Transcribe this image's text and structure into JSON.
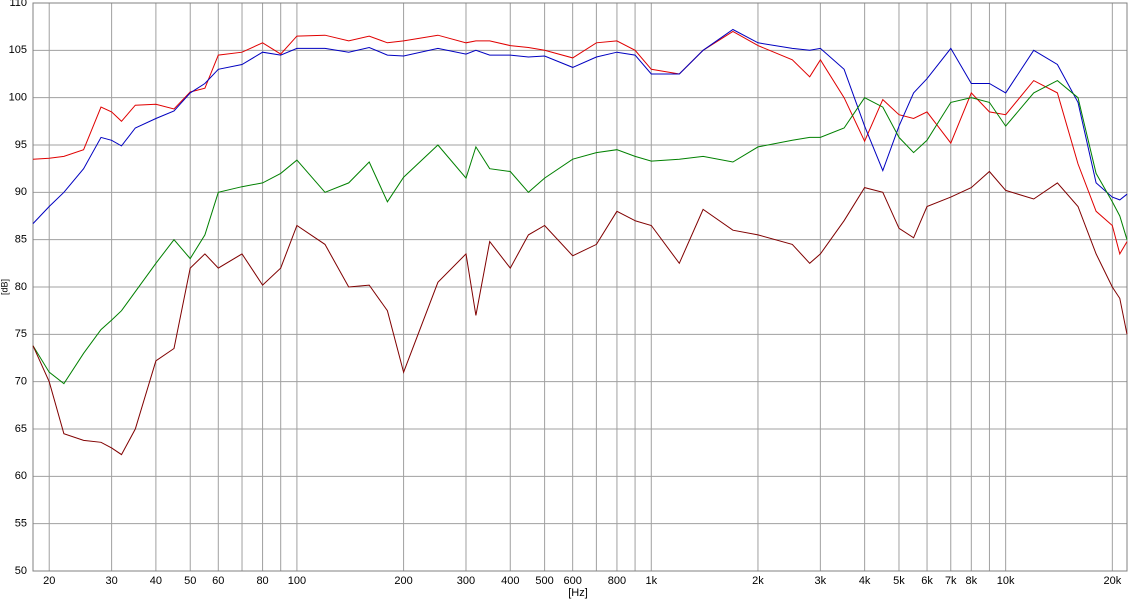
{
  "chart_data": {
    "type": "line",
    "xlabel": "[Hz]",
    "ylabel": "[dB]",
    "xscale": "log",
    "grid": true,
    "xlim": [
      18,
      22000
    ],
    "ylim": [
      50,
      110
    ],
    "yticks": [
      50,
      55,
      60,
      65,
      70,
      75,
      80,
      85,
      90,
      95,
      100,
      105,
      110
    ],
    "xticks": [
      20,
      30,
      40,
      50,
      60,
      80,
      100,
      200,
      300,
      400,
      500,
      600,
      800,
      {
        "value": 1000,
        "label": "1k"
      },
      {
        "value": 2000,
        "label": "2k"
      },
      {
        "value": 3000,
        "label": "3k"
      },
      {
        "value": 4000,
        "label": "4k"
      },
      {
        "value": 5000,
        "label": "5k"
      },
      {
        "value": 6000,
        "label": "6k"
      },
      {
        "value": 7000,
        "label": "7k"
      },
      {
        "value": 8000,
        "label": "8k"
      },
      {
        "value": 10000,
        "label": "10k"
      },
      {
        "value": 20000,
        "label": "20k"
      }
    ],
    "xminorticks": [
      70,
      90,
      700,
      900,
      9000
    ],
    "x": [
      18,
      20,
      22,
      25,
      28,
      30,
      32,
      35,
      40,
      45,
      50,
      55,
      60,
      70,
      80,
      90,
      100,
      120,
      140,
      160,
      180,
      200,
      250,
      300,
      320,
      350,
      400,
      450,
      500,
      600,
      700,
      800,
      900,
      1000,
      1200,
      1400,
      1700,
      2000,
      2500,
      2800,
      3000,
      3500,
      4000,
      4500,
      5000,
      5500,
      6000,
      7000,
      8000,
      9000,
      10000,
      12000,
      14000,
      16000,
      18000,
      20000,
      21000,
      22000
    ],
    "series": [
      {
        "color": "#e00000",
        "values": [
          93.5,
          93.6,
          93.8,
          94.5,
          99,
          98.5,
          97.5,
          99.2,
          99.3,
          98.8,
          100.6,
          101,
          104.5,
          104.8,
          105.8,
          104.6,
          106.5,
          106.6,
          106,
          106.5,
          105.8,
          106,
          106.6,
          105.8,
          106,
          106,
          105.5,
          105.3,
          105,
          104.2,
          105.8,
          106,
          105,
          103,
          102.5,
          105,
          107,
          105.5,
          104,
          102.2,
          104,
          100,
          95.4,
          99.8,
          98.2,
          97.8,
          98.5,
          95.2,
          100.5,
          98.5,
          98.2,
          101.8,
          100.5,
          93,
          88,
          86.5,
          83.5,
          84.8
        ]
      },
      {
        "color": "#0000c0",
        "values": [
          86.7,
          88.5,
          90,
          92.5,
          95.8,
          95.5,
          94.9,
          96.8,
          97.8,
          98.6,
          100.5,
          101.5,
          103,
          103.5,
          104.8,
          104.5,
          105.2,
          105.2,
          104.8,
          105.3,
          104.5,
          104.4,
          105.2,
          104.6,
          105,
          104.5,
          104.5,
          104.3,
          104.4,
          103.2,
          104.3,
          104.8,
          104.5,
          102.5,
          102.5,
          105,
          107.2,
          105.8,
          105.2,
          105,
          105.2,
          103,
          97,
          92.3,
          97,
          100.5,
          102,
          105.2,
          101.5,
          101.5,
          100.5,
          105,
          103.5,
          99.5,
          91,
          89.5,
          89.2,
          89.8
        ]
      },
      {
        "color": "#008000",
        "values": [
          73.8,
          71,
          69.8,
          73,
          75.5,
          76.5,
          77.5,
          79.5,
          82.5,
          85,
          83,
          85.5,
          90,
          90.6,
          91,
          92,
          93.4,
          90,
          91,
          93.2,
          89,
          91.6,
          95,
          91.5,
          94.8,
          92.5,
          92.2,
          90,
          91.5,
          93.5,
          94.2,
          94.5,
          93.8,
          93.3,
          93.5,
          93.8,
          93.2,
          94.8,
          95.5,
          95.8,
          95.8,
          96.8,
          100,
          99,
          95.8,
          94.2,
          95.5,
          99.5,
          100,
          99.5,
          97,
          100.5,
          101.8,
          100,
          92,
          89,
          87.5,
          85
        ]
      },
      {
        "color": "#800000",
        "values": [
          73.8,
          70,
          64.5,
          63.8,
          63.6,
          63,
          62.3,
          65,
          72.2,
          73.5,
          82,
          83.5,
          82,
          83.5,
          80.2,
          82,
          86.5,
          84.5,
          80,
          80.2,
          77.5,
          71,
          80.5,
          83.5,
          77,
          84.8,
          82,
          85.5,
          86.5,
          83.3,
          84.5,
          88,
          87,
          86.5,
          82.5,
          88.2,
          86,
          85.5,
          84.5,
          82.5,
          83.5,
          87,
          90.5,
          90,
          86.2,
          85.2,
          88.5,
          89.5,
          90.5,
          92.2,
          90.2,
          89.3,
          91,
          88.5,
          83.5,
          80,
          78.8,
          75
        ]
      }
    ]
  }
}
